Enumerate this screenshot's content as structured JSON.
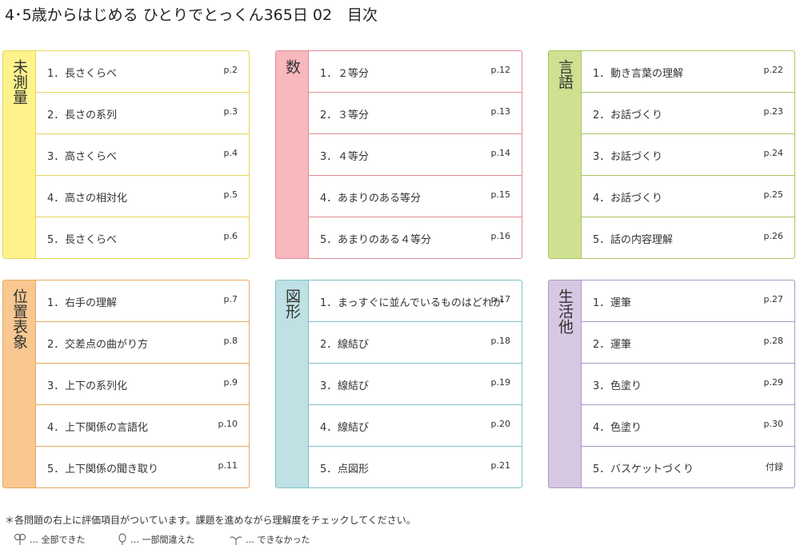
{
  "header": {
    "title": "4･5歳からはじめる ひとりでとっくん365日 02　目次"
  },
  "sections": [
    {
      "label": "未測量",
      "items": [
        {
          "number": "1．",
          "label": "長さくらべ",
          "page": "p.2"
        },
        {
          "number": "2．",
          "label": "長さの系列",
          "page": "p.3"
        },
        {
          "number": "3．",
          "label": "高さくらべ",
          "page": "p.4"
        },
        {
          "number": "4．",
          "label": "高さの相対化",
          "page": "p.5"
        },
        {
          "number": "5．",
          "label": "長さくらべ",
          "page": "p.6"
        }
      ]
    },
    {
      "label": "数",
      "items": [
        {
          "number": "1．",
          "label": "２等分",
          "page": "p.12"
        },
        {
          "number": "2．",
          "label": "３等分",
          "page": "p.13"
        },
        {
          "number": "3．",
          "label": "４等分",
          "page": "p.14"
        },
        {
          "number": "4．",
          "label": "あまりのある等分",
          "page": "p.15"
        },
        {
          "number": "5．",
          "label": "あまりのある４等分",
          "page": "p.16"
        }
      ]
    },
    {
      "label": "言語",
      "items": [
        {
          "number": "1．",
          "label": "動き言葉の理解",
          "page": "p.22"
        },
        {
          "number": "2．",
          "label": "お話づくり",
          "page": "p.23"
        },
        {
          "number": "3．",
          "label": "お話づくり",
          "page": "p.24"
        },
        {
          "number": "4．",
          "label": "お話づくり",
          "page": "p.25"
        },
        {
          "number": "5．",
          "label": "話の内容理解",
          "page": "p.26"
        }
      ]
    },
    {
      "label": "位置表象",
      "items": [
        {
          "number": "1．",
          "label": "右手の理解",
          "page": "p.7"
        },
        {
          "number": "2．",
          "label": "交差点の曲がり方",
          "page": "p.8"
        },
        {
          "number": "3．",
          "label": "上下の系列化",
          "page": "p.9"
        },
        {
          "number": "4．",
          "label": "上下関係の言語化",
          "page": "p.10"
        },
        {
          "number": "5．",
          "label": "上下関係の聞き取り",
          "page": "p.11"
        }
      ]
    },
    {
      "label": "図形",
      "items": [
        {
          "number": "1．",
          "label": "まっすぐに並んでいるものはどれか",
          "page": "p.17"
        },
        {
          "number": "2．",
          "label": "線結び",
          "page": "p.18"
        },
        {
          "number": "3．",
          "label": "線結び",
          "page": "p.19"
        },
        {
          "number": "4．",
          "label": "線結び",
          "page": "p.20"
        },
        {
          "number": "5．",
          "label": "点図形",
          "page": "p.21"
        }
      ]
    },
    {
      "label": "生活他",
      "items": [
        {
          "number": "1．",
          "label": "運筆",
          "page": "p.27"
        },
        {
          "number": "2．",
          "label": "運筆",
          "page": "p.28"
        },
        {
          "number": "3．",
          "label": "色塗り",
          "page": "p.29"
        },
        {
          "number": "4．",
          "label": "色塗り",
          "page": "p.30"
        },
        {
          "number": "5．",
          "label": "バスケットづくり",
          "page": "付録"
        }
      ]
    }
  ],
  "footer": {
    "note": "＊各問題の右上に評価項目がついています。課題を進めながら理解度をチェックしてください。",
    "legend": [
      "… 全部できた",
      "… 一部間違えた",
      "… できなかった"
    ]
  }
}
